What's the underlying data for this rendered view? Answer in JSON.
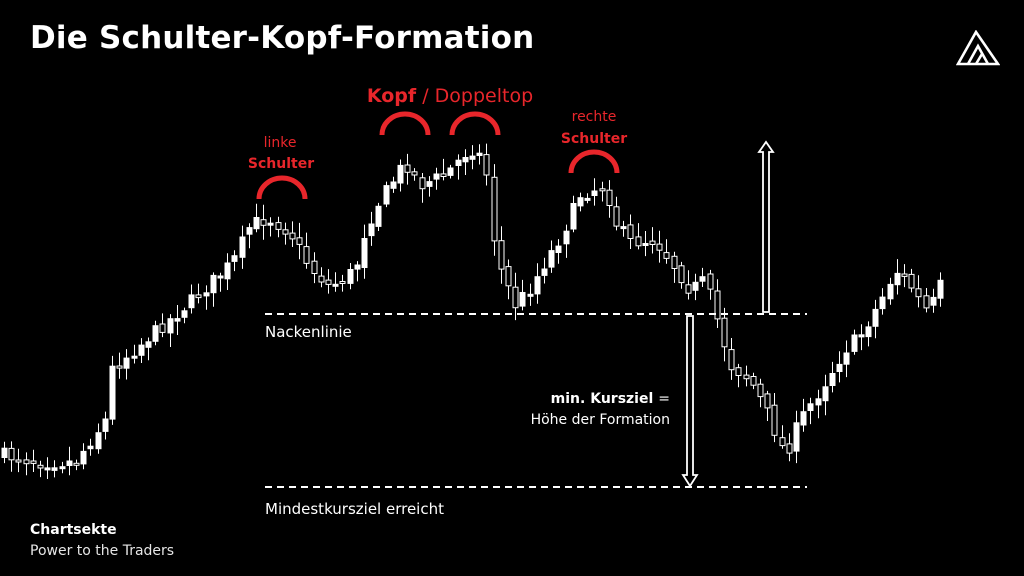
{
  "title": "Die Schulter-Kopf-Formation",
  "brand": {
    "name": "Chartsekte",
    "tagline": "Power to the Traders",
    "logo_icon": "chartsekte-logo-icon"
  },
  "colors": {
    "background": "#000000",
    "accent": "#e8262b",
    "text": "#ffffff"
  },
  "chart_data": {
    "type": "candlestick",
    "title": "Die Schulter-Kopf-Formation",
    "xlabel": "",
    "ylabel": "",
    "grid": false,
    "annotations": {
      "left_shoulder": {
        "line1": "linke",
        "line2": "Schulter"
      },
      "head": {
        "bold": "Kopf",
        "rest": " / Doppeltop"
      },
      "right_shoulder": {
        "line1": "rechte",
        "line2": "Schulter"
      },
      "neckline": "Nackenlinie",
      "target_bold": "min. Kursziel",
      "target_eq": "=",
      "target_line2": "Höhe der Formation",
      "target_reached": "Mindestkursziel erreicht"
    }
  }
}
